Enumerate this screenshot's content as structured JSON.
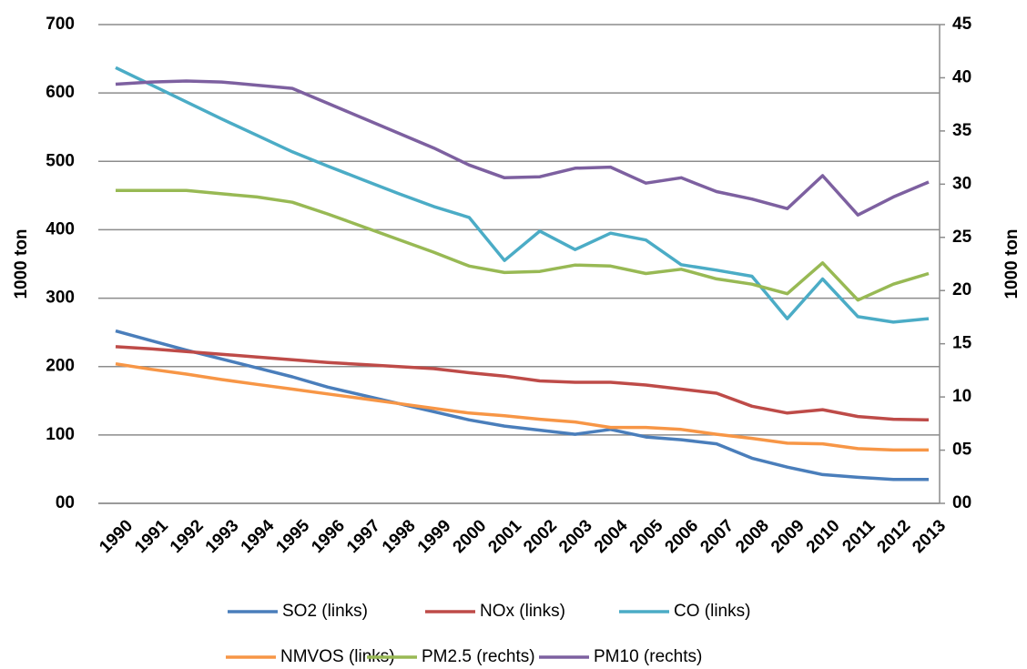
{
  "chart_data": {
    "type": "line",
    "y_label": "1000 ton",
    "y2_label": "1000 ton",
    "categories": [
      "1990",
      "1991",
      "1992",
      "1993",
      "1994",
      "1995",
      "1996",
      "1997",
      "1998",
      "1999",
      "2000",
      "2001",
      "2002",
      "2003",
      "2004",
      "2005",
      "2006",
      "2007",
      "2008",
      "2009",
      "2010",
      "2011",
      "2012",
      "2013"
    ],
    "series": [
      {
        "name": "SO2 (links)",
        "color": "#4a7ebb",
        "values": [
          252,
          238,
          224,
          211,
          198,
          185,
          170,
          158,
          146,
          134,
          122,
          113,
          107,
          101,
          108,
          97,
          93,
          87,
          66,
          53,
          42,
          38,
          35,
          35
        ]
      },
      {
        "name": "NOx (links)",
        "color": "#be4b48",
        "values": [
          229,
          226,
          222,
          218,
          214,
          210,
          206,
          203,
          200,
          197,
          191,
          186,
          179,
          177,
          177,
          173,
          167,
          161,
          142,
          132,
          137,
          127,
          123,
          122
        ]
      },
      {
        "name": "CO (links)",
        "color": "#4bacc6",
        "values": [
          637,
          612,
          587,
          562,
          538,
          514,
          493,
          473,
          453,
          434,
          418,
          355,
          398,
          371,
          395,
          385,
          349,
          341,
          332,
          270,
          328,
          273,
          265,
          270
        ]
      },
      {
        "name": "NMVOS (links)",
        "color": "#f79646",
        "values": [
          204,
          196,
          189,
          181,
          174,
          167,
          160,
          153,
          146,
          139,
          132,
          128,
          123,
          119,
          111,
          111,
          108,
          101,
          95,
          88,
          87,
          80,
          78,
          78
        ]
      },
      {
        "name": "PM2.5 (rechts)",
        "color": "#98b954",
        "axis": "y2",
        "values": [
          29.4,
          29.4,
          29.4,
          29.1,
          28.8,
          28.3,
          27.2,
          26.0,
          24.8,
          23.6,
          22.3,
          21.7,
          21.8,
          22.4,
          22.3,
          21.6,
          22.0,
          21.1,
          20.6,
          19.7,
          22.6,
          19.1,
          20.6,
          21.6
        ]
      },
      {
        "name": "PM10 (rechts)",
        "color": "#7d60a0",
        "axis": "y2",
        "values": [
          39.4,
          39.6,
          39.7,
          39.6,
          39.3,
          39.0,
          37.6,
          36.2,
          34.8,
          33.4,
          31.8,
          30.6,
          30.7,
          31.5,
          31.6,
          30.1,
          30.6,
          29.3,
          28.6,
          27.7,
          30.8,
          27.1,
          28.8,
          30.2
        ]
      }
    ],
    "ylim": [
      0,
      700
    ],
    "yticks": [
      {
        "value": 0,
        "label": "00"
      },
      100,
      200,
      300,
      400,
      500,
      600,
      700
    ],
    "y2lim": [
      0,
      45
    ],
    "y2ticks": [
      {
        "value": 0,
        "label": "00"
      },
      {
        "value": 5,
        "label": "05"
      },
      10,
      15,
      20,
      25,
      30,
      35,
      40,
      45
    ],
    "grid": true,
    "legend": "bottom"
  }
}
